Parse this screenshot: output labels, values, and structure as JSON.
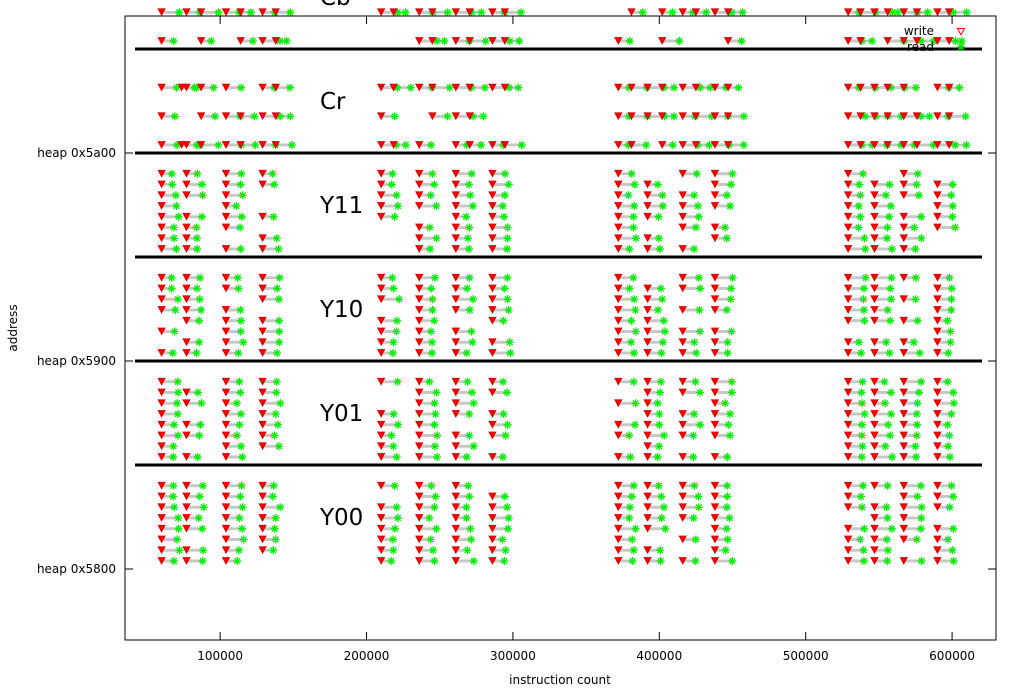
{
  "chart_data": {
    "type": "scatter",
    "xlabel": "instruction count",
    "ylabel": "address",
    "xlim": [
      35000,
      630000
    ],
    "ylim": [
      22000,
      22910
    ],
    "x_ticks": [
      {
        "value": 100000,
        "label": "100000"
      },
      {
        "value": 200000,
        "label": "200000"
      },
      {
        "value": 300000,
        "label": "300000"
      },
      {
        "value": 400000,
        "label": "400000"
      },
      {
        "value": 500000,
        "label": "500000"
      },
      {
        "value": 600000,
        "label": "600000"
      }
    ],
    "y_ticks": [
      {
        "value": 22528,
        "label": "heap 0x5800"
      },
      {
        "value": 22784,
        "label": "heap 0x5900"
      },
      {
        "value": 23040,
        "label": "heap 0x5a00"
      }
    ],
    "regions": [
      {
        "label": "Y00",
        "y_bottom": 22528,
        "y_top": 22656
      },
      {
        "label": "Y01",
        "y_bottom": 22656,
        "y_top": 22784
      },
      {
        "label": "Y10",
        "y_bottom": 22784,
        "y_top": 22912
      },
      {
        "label": "Y11",
        "y_bottom": 22912,
        "y_top": 23040
      },
      {
        "label": "Cr",
        "y_bottom": 23040,
        "y_top": 23168
      },
      {
        "label": "Cb",
        "y_bottom": 23168,
        "y_top": 23296
      }
    ],
    "legend": {
      "position": "top-right",
      "entries": [
        {
          "name": "write",
          "marker": "triangle-down",
          "color": "#ff0000"
        },
        {
          "name": "read",
          "marker": "star",
          "color": "#00ff00"
        }
      ]
    },
    "series": [
      {
        "name": "write",
        "color": "#ff0000",
        "marker": "triangle-down"
      },
      {
        "name": "read",
        "color": "#00ff00",
        "marker": "star"
      },
      {
        "name": "dependency",
        "color": "#c0c0c0",
        "marker": "line"
      }
    ],
    "grid": false
  }
}
